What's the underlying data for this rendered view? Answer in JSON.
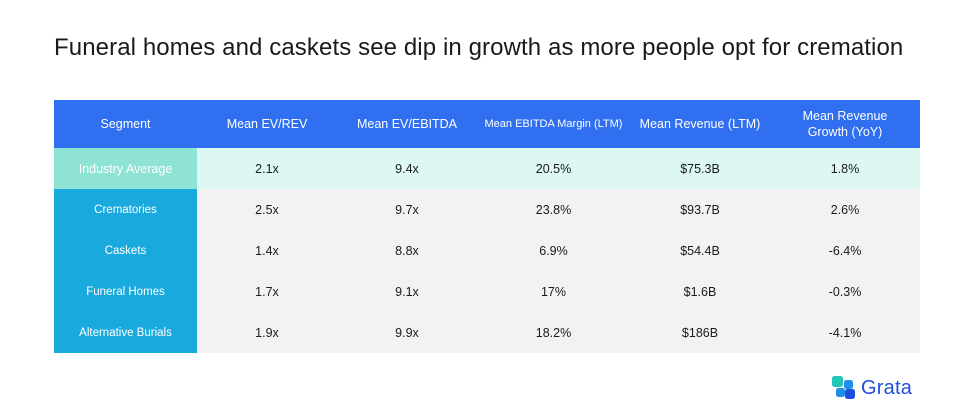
{
  "title": "Funeral homes and caskets see dip in growth as more people opt for cremation",
  "table": {
    "headers": [
      "Segment",
      "Mean EV/REV",
      "Mean EV/EBITDA",
      "Mean EBITDA Margin (LTM)",
      "Mean Revenue (LTM)",
      "Mean Revenue Growth (YoY)"
    ],
    "rows": [
      [
        "Industry Average",
        "2.1x",
        "9.4x",
        "20.5%",
        "$75.3B",
        "1.8%"
      ],
      [
        "Crematories",
        "2.5x",
        "9.7x",
        "23.8%",
        "$93.7B",
        "2.6%"
      ],
      [
        "Caskets",
        "1.4x",
        "8.8x",
        "6.9%",
        "$54.4B",
        "-6.4%"
      ],
      [
        "Funeral Homes",
        "1.7x",
        "9.1x",
        "17%",
        "$1.6B",
        "-0.3%"
      ],
      [
        "Alternative Burials",
        "1.9x",
        "9.9x",
        "18.2%",
        "$186B",
        "-4.1%"
      ]
    ]
  },
  "brand": {
    "name": "Grata",
    "icon": "grata-logo-icon",
    "colors": {
      "header": "#2f6ff0",
      "segment": "#19a9dc",
      "average_row": "#ddf7f2",
      "average_segment": "#8fe3d4",
      "logo": "#1f4fe0"
    }
  }
}
